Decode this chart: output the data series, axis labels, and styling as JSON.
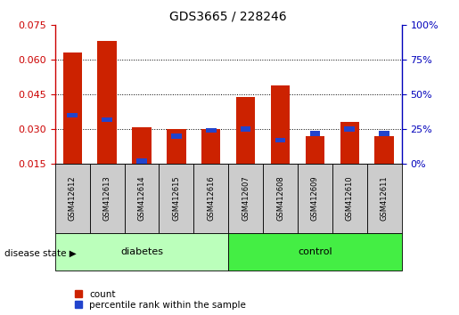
{
  "title": "GDS3665 / 228246",
  "samples": [
    "GSM412612",
    "GSM412613",
    "GSM412614",
    "GSM412615",
    "GSM412616",
    "GSM412607",
    "GSM412608",
    "GSM412609",
    "GSM412610",
    "GSM412611"
  ],
  "disease_groups": [
    {
      "label": "diabetes",
      "indices": [
        0,
        1,
        2,
        3,
        4
      ]
    },
    {
      "label": "control",
      "indices": [
        5,
        6,
        7,
        8,
        9
      ]
    }
  ],
  "count": [
    0.063,
    0.068,
    0.031,
    0.03,
    0.03,
    0.044,
    0.049,
    0.027,
    0.033,
    0.027
  ],
  "percentile": [
    35,
    32,
    2,
    20,
    24,
    25,
    17,
    22,
    25,
    22
  ],
  "ylim_left": [
    0.015,
    0.075
  ],
  "ylim_right": [
    0,
    100
  ],
  "yticks_left": [
    0.015,
    0.03,
    0.045,
    0.06,
    0.075
  ],
  "yticks_right": [
    0,
    25,
    50,
    75,
    100
  ],
  "bar_color_red": "#cc2200",
  "bar_color_blue": "#2244cc",
  "bar_width": 0.55,
  "blue_bar_width": 0.3,
  "bg_xlabels": "#cccccc",
  "bg_disease_diabetes": "#bbffbb",
  "bg_disease_control": "#44ee44",
  "disease_state_label": "disease state",
  "legend_count": "count",
  "legend_percentile": "percentile rank within the sample",
  "left_label_color": "#cc0000",
  "right_label_color": "#0000bb",
  "left_spine_color": "#cc0000",
  "right_spine_color": "#0000bb"
}
